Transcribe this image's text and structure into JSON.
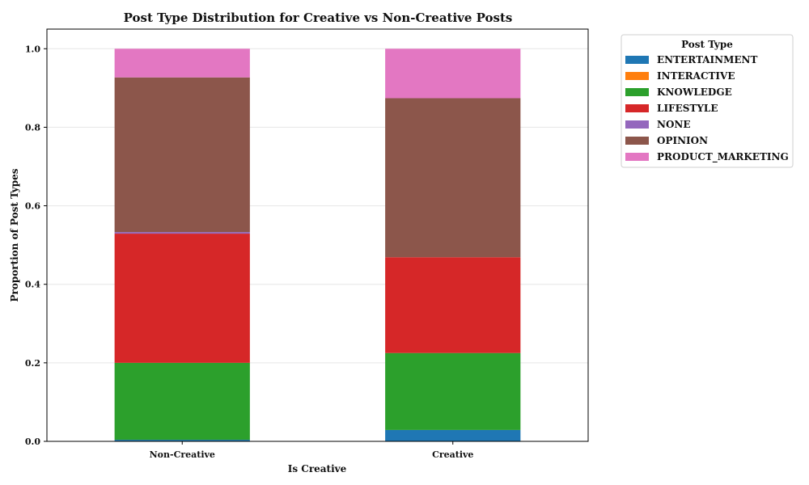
{
  "chart_data": {
    "type": "bar",
    "stacked": true,
    "title": "Post Type Distribution for Creative vs Non-Creative Posts",
    "xlabel": "Is Creative",
    "ylabel": "Proportion of Post Types",
    "categories": [
      "Non-Creative",
      "Creative"
    ],
    "ylim": [
      0,
      1.05
    ],
    "yticks": [
      "0.0",
      "0.2",
      "0.4",
      "0.6",
      "0.8",
      "1.0"
    ],
    "grid": "horizontal",
    "legend": {
      "title": "Post Type",
      "position": "outside-top-right"
    },
    "series": [
      {
        "name": "ENTERTAINMENT",
        "color": "#1f77b4",
        "values": [
          0.004,
          0.029
        ]
      },
      {
        "name": "INTERACTIVE",
        "color": "#ff7f0e",
        "values": [
          0.0,
          0.0
        ]
      },
      {
        "name": "KNOWLEDGE",
        "color": "#2ca02c",
        "values": [
          0.196,
          0.196
        ]
      },
      {
        "name": "LIFESTYLE",
        "color": "#d62728",
        "values": [
          0.329,
          0.244
        ]
      },
      {
        "name": "NONE",
        "color": "#9467bd",
        "values": [
          0.004,
          0.0
        ]
      },
      {
        "name": "OPINION",
        "color": "#8c564b",
        "values": [
          0.394,
          0.405
        ]
      },
      {
        "name": "PRODUCT_MARKETING",
        "color": "#e377c2",
        "values": [
          0.073,
          0.126
        ]
      }
    ]
  }
}
